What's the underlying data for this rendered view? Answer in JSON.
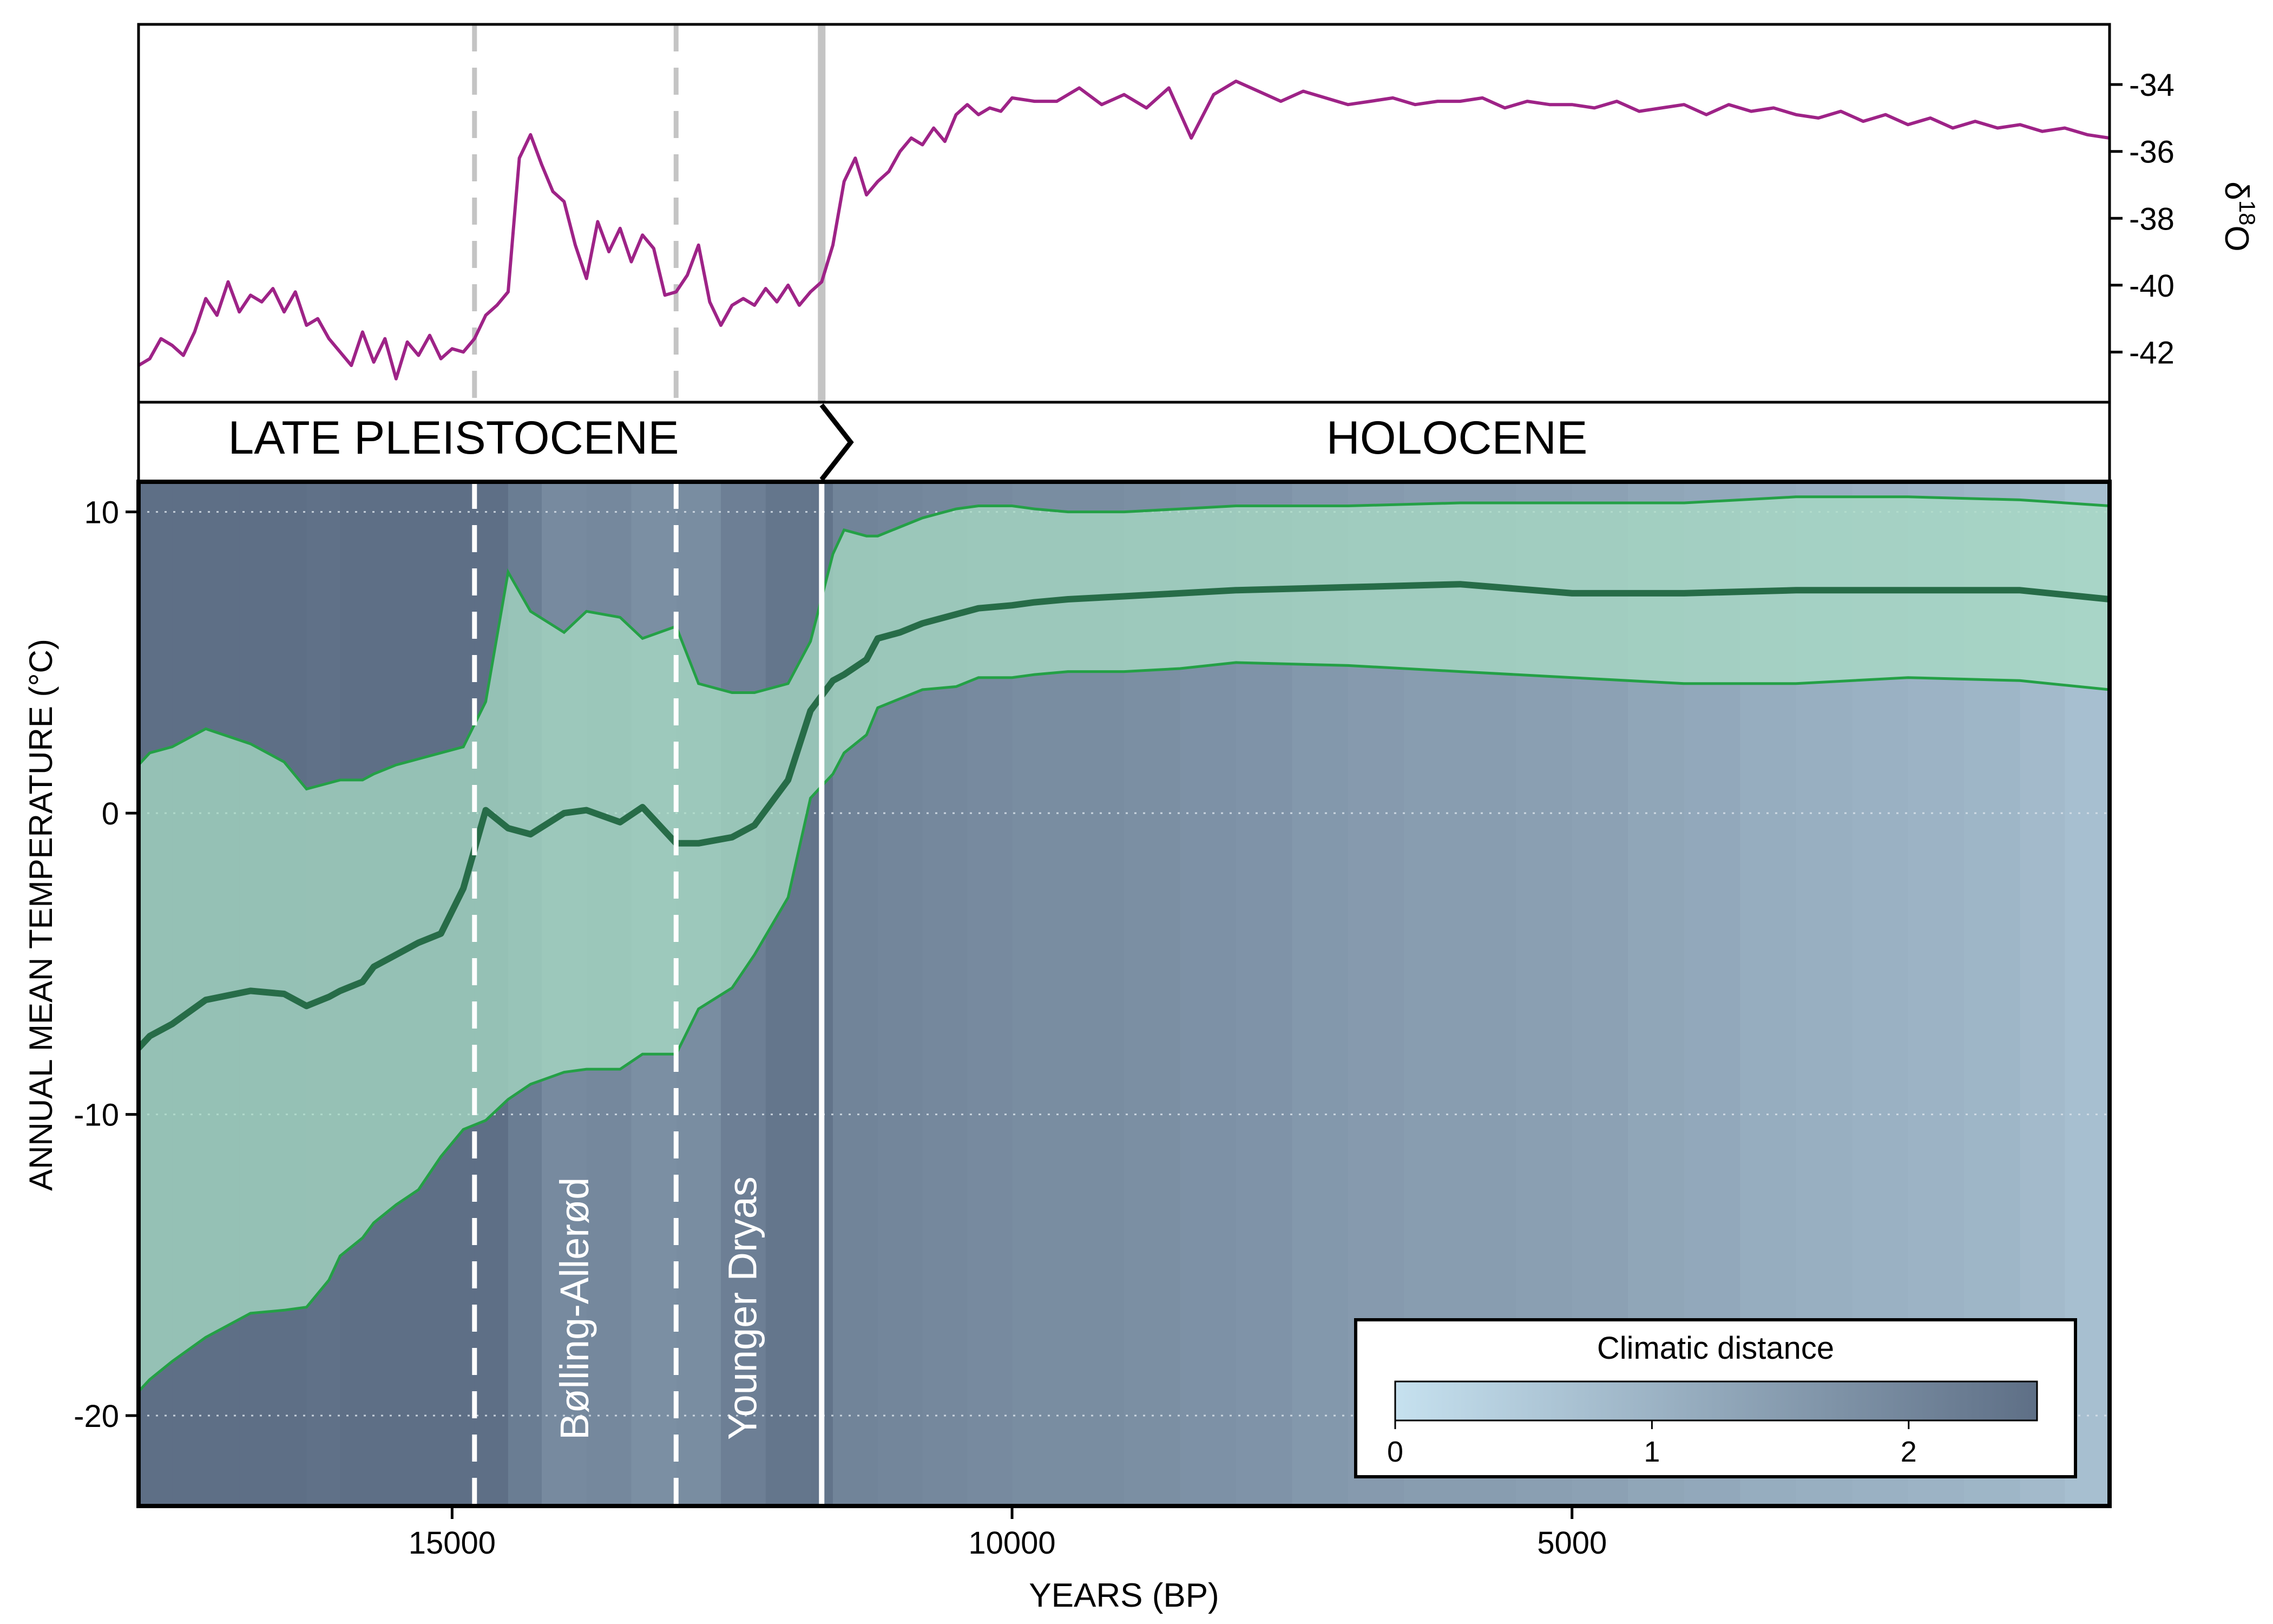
{
  "chart_data": [
    {
      "type": "line",
      "panel": "isotope",
      "ylabel": "δ18O",
      "ylabel_main": "δ",
      "ylabel_sup": "18",
      "ylabel_tail": "O",
      "x_reversed": true,
      "xlim": [
        17800,
        200
      ],
      "ylim": [
        -43.5,
        -32.2
      ],
      "y_ticks": [
        -34,
        -36,
        -38,
        -40,
        -42
      ],
      "y_tick_labels": [
        "-34",
        "-36",
        "-38",
        "-40",
        "-42"
      ],
      "series": [
        {
          "color": "#9e2387",
          "x": [
            17800,
            17700,
            17600,
            17500,
            17400,
            17300,
            17200,
            17100,
            17000,
            16900,
            16800,
            16700,
            16600,
            16500,
            16400,
            16300,
            16200,
            16100,
            16000,
            15900,
            15800,
            15700,
            15600,
            15500,
            15400,
            15300,
            15200,
            15100,
            15000,
            14900,
            14800,
            14700,
            14600,
            14500,
            14400,
            14300,
            14200,
            14100,
            14000,
            13900,
            13800,
            13700,
            13600,
            13500,
            13400,
            13300,
            13200,
            13100,
            13000,
            12900,
            12800,
            12700,
            12600,
            12500,
            12400,
            12300,
            12200,
            12100,
            12000,
            11900,
            11800,
            11700,
            11600,
            11500,
            11400,
            11300,
            11200,
            11100,
            11000,
            10900,
            10800,
            10700,
            10600,
            10500,
            10400,
            10300,
            10200,
            10100,
            10000,
            9800,
            9600,
            9400,
            9200,
            9000,
            8800,
            8600,
            8400,
            8200,
            8000,
            7800,
            7600,
            7400,
            7200,
            7000,
            6800,
            6600,
            6400,
            6200,
            6000,
            5800,
            5600,
            5400,
            5200,
            5000,
            4800,
            4600,
            4400,
            4200,
            4000,
            3800,
            3600,
            3400,
            3200,
            3000,
            2800,
            2600,
            2400,
            2200,
            2000,
            1800,
            1600,
            1400,
            1200,
            1000,
            800,
            600,
            400,
            200
          ],
          "values": [
            -42.4,
            -42.2,
            -41.6,
            -41.8,
            -42.1,
            -41.4,
            -40.4,
            -40.9,
            -39.9,
            -40.8,
            -40.3,
            -40.5,
            -40.1,
            -40.8,
            -40.2,
            -41.2,
            -41.0,
            -41.6,
            -42.0,
            -42.4,
            -41.4,
            -42.3,
            -41.6,
            -42.8,
            -41.7,
            -42.1,
            -41.5,
            -42.2,
            -41.9,
            -42.0,
            -41.6,
            -40.9,
            -40.6,
            -40.2,
            -36.2,
            -35.5,
            -36.4,
            -37.2,
            -37.5,
            -38.8,
            -39.8,
            -38.1,
            -39.0,
            -38.3,
            -39.3,
            -38.5,
            -38.9,
            -40.3,
            -40.2,
            -39.7,
            -38.8,
            -40.5,
            -41.2,
            -40.6,
            -40.4,
            -40.6,
            -40.1,
            -40.5,
            -40.0,
            -40.6,
            -40.2,
            -39.9,
            -38.8,
            -36.9,
            -36.2,
            -37.3,
            -36.9,
            -36.6,
            -36.0,
            -35.6,
            -35.8,
            -35.3,
            -35.7,
            -34.9,
            -34.6,
            -34.9,
            -34.7,
            -34.8,
            -34.4,
            -34.5,
            -34.5,
            -34.1,
            -34.6,
            -34.3,
            -34.7,
            -34.1,
            -35.6,
            -34.3,
            -33.9,
            -34.2,
            -34.5,
            -34.2,
            -34.4,
            -34.6,
            -34.5,
            -34.4,
            -34.6,
            -34.5,
            -34.5,
            -34.4,
            -34.7,
            -34.5,
            -34.6,
            -34.6,
            -34.7,
            -34.5,
            -34.8,
            -34.7,
            -34.6,
            -34.9,
            -34.6,
            -34.8,
            -34.7,
            -34.9,
            -35.0,
            -34.8,
            -35.1,
            -34.9,
            -35.2,
            -35.0,
            -35.3,
            -35.1,
            -35.3,
            -35.2,
            -35.4,
            -35.3,
            -35.5,
            -35.6
          ]
        }
      ]
    },
    {
      "type": "area",
      "panel": "temperature",
      "xlabel": "YEARS (BP)",
      "ylabel": "ANNUAL MEAN TEMPERATURE  (°C)",
      "x_reversed": true,
      "xlim": [
        17800,
        200
      ],
      "ylim": [
        -23,
        11
      ],
      "x_ticks": [
        15000,
        10000,
        5000
      ],
      "x_tick_labels": [
        "15000",
        "10000",
        "5000"
      ],
      "y_ticks": [
        10,
        0,
        -10,
        -20
      ],
      "y_tick_labels": [
        "10",
        "0",
        "-10",
        "-20"
      ],
      "grid": "horizontal dotted",
      "x": [
        17800,
        17700,
        17500,
        17200,
        16800,
        16500,
        16300,
        16100,
        16000,
        15800,
        15700,
        15500,
        15300,
        15100,
        14900,
        14700,
        14500,
        14300,
        14000,
        13800,
        13500,
        13300,
        13000,
        12800,
        12500,
        12300,
        12000,
        11800,
        11600,
        11500,
        11300,
        11200,
        11000,
        10800,
        10500,
        10300,
        10000,
        9800,
        9500,
        9000,
        8500,
        8000,
        7000,
        6000,
        5000,
        4000,
        3000,
        2000,
        1000,
        200
      ],
      "series": [
        {
          "name": "",
          "role": "upper",
          "color": "#24a046",
          "values": [
            1.6,
            2.0,
            2.2,
            2.8,
            2.3,
            1.7,
            0.8,
            1.0,
            1.1,
            1.1,
            1.3,
            1.6,
            1.8,
            2.0,
            2.2,
            3.7,
            8.0,
            6.7,
            6.0,
            6.7,
            6.5,
            5.8,
            6.2,
            4.3,
            4.0,
            4.0,
            4.3,
            5.7,
            8.6,
            9.4,
            9.2,
            9.2,
            9.5,
            9.8,
            10.1,
            10.2,
            10.2,
            10.1,
            10.0,
            10.0,
            10.1,
            10.2,
            10.2,
            10.3,
            10.3,
            10.3,
            10.5,
            10.5,
            10.4,
            10.2
          ]
        },
        {
          "name": "",
          "role": "mean",
          "color": "#276c48",
          "values": [
            -7.8,
            -7.4,
            -7.0,
            -6.2,
            -5.9,
            -6.0,
            -6.4,
            -6.1,
            -5.9,
            -5.6,
            -5.1,
            -4.7,
            -4.3,
            -4.0,
            -2.5,
            0.1,
            -0.5,
            -0.7,
            0.0,
            0.1,
            -0.3,
            0.2,
            -1.0,
            -1.0,
            -0.8,
            -0.4,
            1.1,
            3.4,
            4.4,
            4.6,
            5.1,
            5.8,
            6.0,
            6.3,
            6.6,
            6.8,
            6.9,
            7.0,
            7.1,
            7.2,
            7.3,
            7.4,
            7.5,
            7.6,
            7.3,
            7.3,
            7.4,
            7.4,
            7.4,
            7.1
          ]
        },
        {
          "name": "",
          "role": "lower",
          "color": "#24a046",
          "values": [
            -19.2,
            -18.8,
            -18.2,
            -17.4,
            -16.6,
            -16.5,
            -16.4,
            -15.5,
            -14.7,
            -14.1,
            -13.6,
            -13.0,
            -12.5,
            -11.4,
            -10.5,
            -10.2,
            -9.5,
            -9.0,
            -8.6,
            -8.5,
            -8.5,
            -8.0,
            -8.0,
            -6.5,
            -5.8,
            -4.7,
            -2.8,
            0.5,
            1.3,
            2.0,
            2.6,
            3.5,
            3.8,
            4.1,
            4.2,
            4.5,
            4.5,
            4.6,
            4.7,
            4.7,
            4.8,
            5.0,
            4.9,
            4.7,
            4.5,
            4.3,
            4.3,
            4.5,
            4.4,
            4.1
          ]
        }
      ]
    }
  ],
  "background": {
    "colorbar_title": "Climatic distance",
    "colorbar_ticks": [
      "0",
      "1",
      "2"
    ],
    "colorbar_range": [
      0,
      2.5
    ],
    "color_low": "#c6e1ef",
    "color_high": "#5e6f86",
    "x": [
      17800,
      17500,
      17200,
      16900,
      16600,
      16300,
      16000,
      15600,
      15200,
      14800,
      14500,
      14200,
      13800,
      13400,
      13000,
      12600,
      12200,
      11800,
      11600,
      11200,
      10800,
      10400,
      10000,
      9500,
      9000,
      8500,
      8000,
      7500,
      7000,
      6500,
      6000,
      5500,
      5000,
      4500,
      4000,
      3500,
      3000,
      2500,
      2000,
      1500,
      1000,
      600,
      200
    ],
    "values": [
      2.6,
      2.55,
      2.5,
      2.55,
      2.5,
      2.45,
      2.55,
      2.5,
      2.55,
      2.6,
      2.2,
      1.9,
      1.95,
      1.8,
      1.85,
      2.15,
      2.35,
      2.4,
      2.05,
      2.0,
      1.95,
      1.9,
      1.85,
      1.85,
      1.8,
      1.75,
      1.7,
      1.6,
      1.55,
      1.5,
      1.5,
      1.45,
      1.4,
      1.3,
      1.25,
      1.15,
      1.1,
      1.05,
      1.0,
      0.95,
      0.85,
      0.75,
      0.6
    ]
  },
  "events": {
    "dashed_x": [
      14800,
      13000
    ],
    "boundary_x": 11700,
    "labels": [
      {
        "text": "Bølling-Allerød",
        "x": 13900
      },
      {
        "text": "Younger Dryas",
        "x": 12400
      }
    ]
  },
  "epochs": {
    "late_pleistocene": "LATE PLEISTOCENE",
    "holocene": "HOLOCENE"
  }
}
